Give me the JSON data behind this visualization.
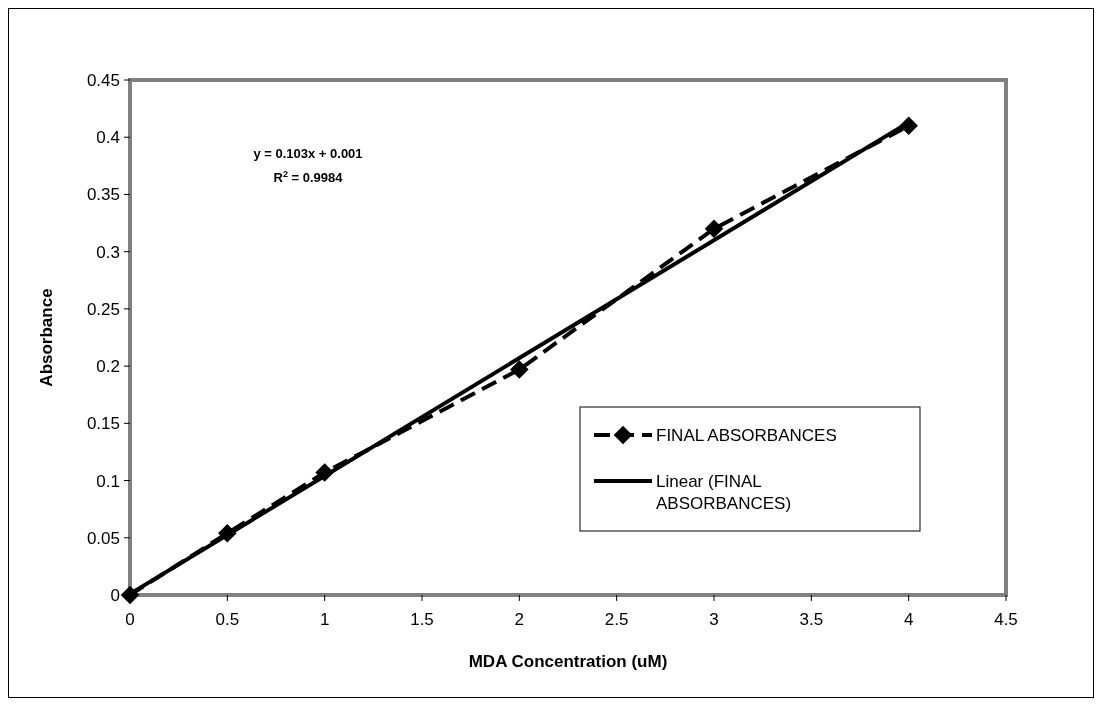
{
  "chart_data": {
    "type": "line",
    "xlabel": "MDA Concentration (uM)",
    "ylabel": "Absorbance",
    "x": [
      0,
      0.5,
      1,
      2,
      3,
      4
    ],
    "series": [
      {
        "name": "FINAL ABSORBANCES",
        "color": "#000000",
        "values": [
          0,
          0.054,
          0.107,
          0.197,
          0.32,
          0.41
        ],
        "marker": "diamond",
        "line_style": "dashed"
      },
      {
        "name": "Linear (FINAL ABSORBANCES)",
        "color": "#000000",
        "x": [
          0,
          4
        ],
        "values": [
          0.001,
          0.413
        ],
        "marker": "none",
        "line_style": "solid"
      }
    ],
    "xlim": [
      0,
      4.5
    ],
    "xticks": [
      0,
      0.5,
      1,
      1.5,
      2,
      2.5,
      3,
      3.5,
      4,
      4.5
    ],
    "ylim": [
      0,
      0.45
    ],
    "yticks": [
      0,
      0.05,
      0.1,
      0.15,
      0.2,
      0.25,
      0.3,
      0.35,
      0.4,
      0.45
    ],
    "annotations": [
      "y = 0.103x + 0.001",
      "R$^{2}$ = 0.9984"
    ],
    "legend": "right",
    "grid": false
  }
}
